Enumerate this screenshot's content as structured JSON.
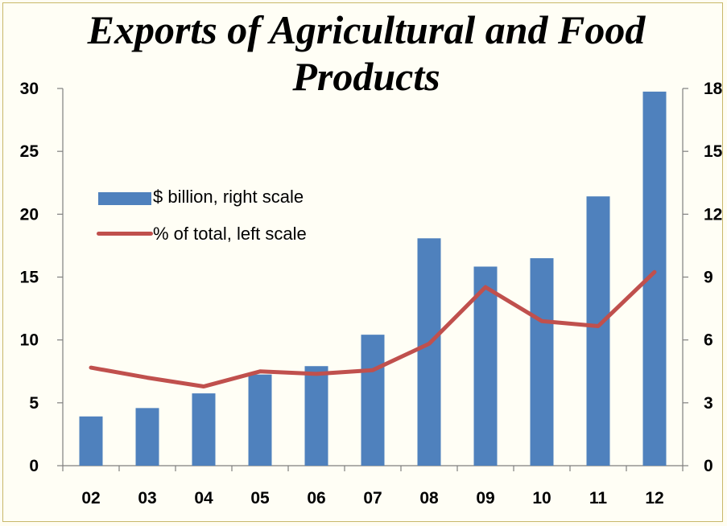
{
  "chart_data": {
    "type": "bar",
    "title": "Exports of Agricultural and Food Products",
    "categories": [
      "02",
      "03",
      "04",
      "05",
      "06",
      "07",
      "08",
      "09",
      "10",
      "11",
      "12"
    ],
    "series": [
      {
        "name": "$ billion, right scale",
        "type": "bar",
        "axis": "right",
        "values": [
          2.35,
          2.75,
          3.45,
          4.35,
          4.75,
          6.25,
          10.85,
          9.5,
          9.9,
          12.85,
          17.85
        ]
      },
      {
        "name": "% of total, left scale",
        "type": "line",
        "axis": "left",
        "values": [
          7.8,
          7.0,
          6.3,
          7.5,
          7.3,
          7.6,
          9.7,
          14.2,
          11.5,
          11.1,
          15.4
        ]
      }
    ],
    "left_axis": {
      "ylim": [
        0,
        30
      ],
      "ticks": [
        "0",
        "5",
        "10",
        "15",
        "20",
        "25",
        "30"
      ]
    },
    "right_axis": {
      "ylim": [
        0,
        18
      ],
      "ticks": [
        "0",
        "3",
        "6",
        "9",
        "12",
        "15",
        "18"
      ]
    },
    "grid": false,
    "legend_position": "upper-left",
    "colors": {
      "bar": "#4f81bd",
      "line": "#c0504d"
    }
  }
}
